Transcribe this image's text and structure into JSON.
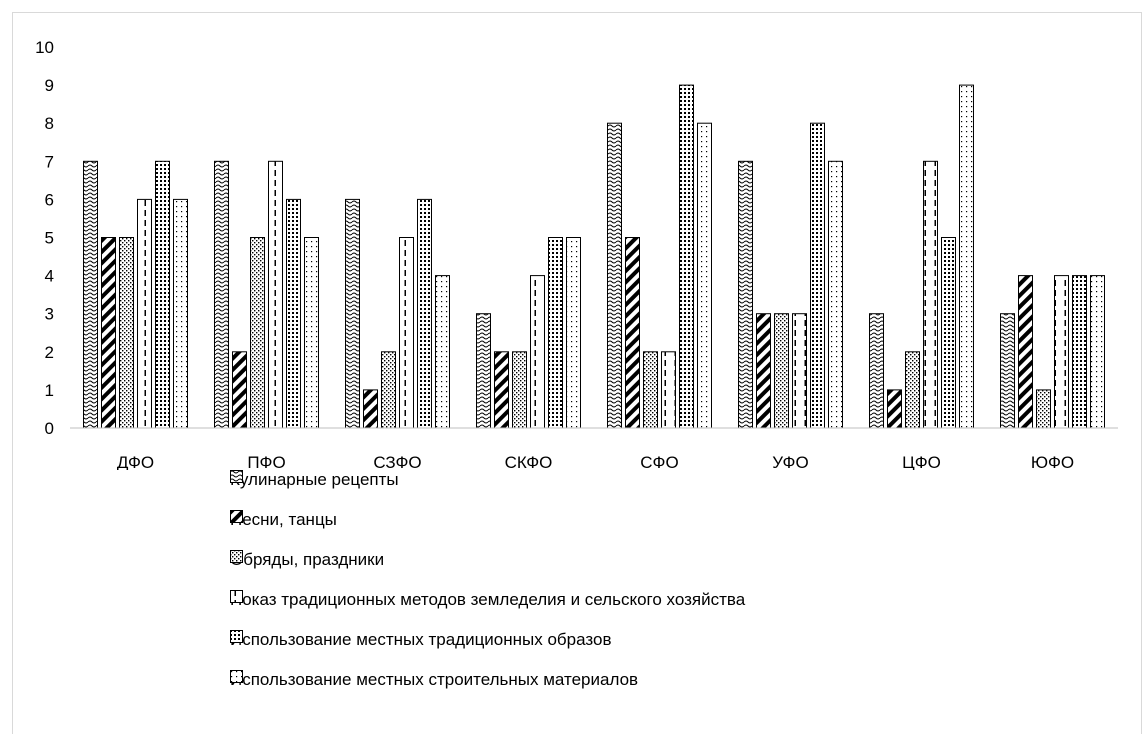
{
  "chart_data": {
    "type": "bar",
    "categories": [
      "ДФО",
      "ПФО",
      "СЗФО",
      "СКФО",
      "СФО",
      "УФО",
      "ЦФО",
      "ЮФО"
    ],
    "series": [
      {
        "name": "Кулинарные рецепты",
        "pattern": "waves",
        "values": [
          7,
          7,
          6,
          3,
          8,
          7,
          3,
          3
        ]
      },
      {
        "name": "Песни, танцы",
        "pattern": "thick-diagonal",
        "values": [
          5,
          2,
          1,
          2,
          5,
          3,
          1,
          4
        ]
      },
      {
        "name": "Обряды, праздники",
        "pattern": "dots-dense",
        "values": [
          5,
          5,
          2,
          2,
          2,
          3,
          2,
          1
        ]
      },
      {
        "name": "Показ традиционных методов земледелия и сельского хозяйства",
        "pattern": "dashed-vertical",
        "values": [
          6,
          7,
          5,
          4,
          2,
          3,
          7,
          4
        ]
      },
      {
        "name": "Использование местных традиционных образов",
        "pattern": "grid-dots",
        "values": [
          7,
          6,
          6,
          5,
          9,
          8,
          5,
          4
        ]
      },
      {
        "name": "Использование местных строительных материалов",
        "pattern": "sparse-dots",
        "values": [
          6,
          5,
          4,
          5,
          8,
          7,
          9,
          4
        ]
      }
    ],
    "yticks": [
      "0",
      "1",
      "2",
      "3",
      "4",
      "5",
      "6",
      "7",
      "8",
      "9",
      "10"
    ],
    "ylim": [
      0,
      10
    ],
    "xlabel": "",
    "ylabel": "",
    "grid": false,
    "legend_position": "bottom"
  }
}
